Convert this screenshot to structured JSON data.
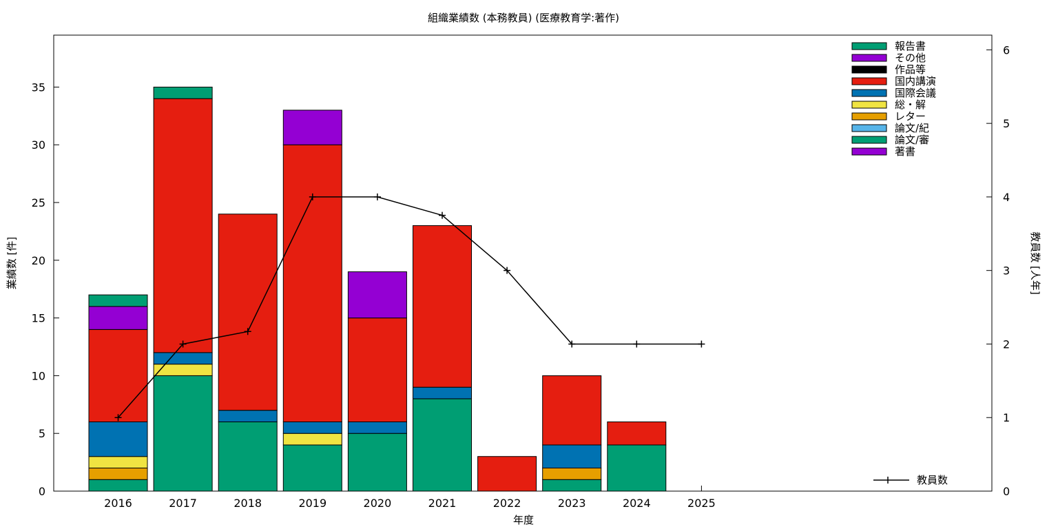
{
  "chart_data": {
    "type": "bar",
    "subtype": "stacked-bar-with-line",
    "title": "組織業績数 (本務教員) (医療教育学:著作)",
    "xlabel": "年度",
    "ylabel": "業績数 [件]",
    "y2label": "教員数 [人年]",
    "ylim": [
      0,
      39.5
    ],
    "y2lim": [
      0,
      6.2
    ],
    "yticks": [
      0,
      5,
      10,
      15,
      20,
      25,
      30,
      35
    ],
    "y2ticks": [
      0,
      1,
      2,
      3,
      4,
      5,
      6
    ],
    "categories": [
      "2016",
      "2017",
      "2018",
      "2019",
      "2020",
      "2021",
      "2022",
      "2023",
      "2024",
      "2025"
    ],
    "grid": false,
    "legend_position": "top-right",
    "series": [
      {
        "name": "著書",
        "color": "#9400d3",
        "values": [
          0,
          0,
          0,
          0,
          0,
          0,
          0,
          0,
          0,
          0
        ]
      },
      {
        "name": "論文/審",
        "color": "#009e73",
        "values": [
          1,
          10,
          6,
          4,
          5,
          8,
          0,
          1,
          4,
          0
        ]
      },
      {
        "name": "論文/紀",
        "color": "#56b4e9",
        "values": [
          0,
          0,
          0,
          0,
          0,
          0,
          0,
          0,
          0,
          0
        ]
      },
      {
        "name": "レター",
        "color": "#e69f00",
        "values": [
          1,
          0,
          0,
          0,
          0,
          0,
          0,
          1,
          0,
          0
        ]
      },
      {
        "name": "総・解",
        "color": "#f0e442",
        "values": [
          1,
          1,
          0,
          1,
          0,
          0,
          0,
          0,
          0,
          0
        ]
      },
      {
        "name": "国際会議",
        "color": "#0072b2",
        "values": [
          3,
          1,
          1,
          1,
          1,
          1,
          0,
          2,
          0,
          0
        ]
      },
      {
        "name": "国内講演",
        "color": "#e51e10",
        "values": [
          8,
          22,
          17,
          24,
          9,
          14,
          3,
          6,
          2,
          0
        ]
      },
      {
        "name": "作品等",
        "color": "#000000",
        "values": [
          0,
          0,
          0,
          0,
          0,
          0,
          0,
          0,
          0,
          0
        ]
      },
      {
        "name": "その他",
        "color": "#9400d3",
        "values": [
          2,
          0,
          0,
          3,
          4,
          0,
          0,
          0,
          0,
          0
        ]
      },
      {
        "name": "報告書",
        "color": "#009e73",
        "values": [
          1,
          1,
          0,
          0,
          0,
          0,
          0,
          0,
          0,
          0
        ]
      }
    ],
    "line_series": {
      "name": "教員数",
      "axis": "right",
      "color": "#000000",
      "values": [
        1.0,
        2.0,
        2.17,
        4.0,
        4.0,
        3.75,
        3.0,
        2.0,
        2.0,
        2.0
      ]
    }
  }
}
